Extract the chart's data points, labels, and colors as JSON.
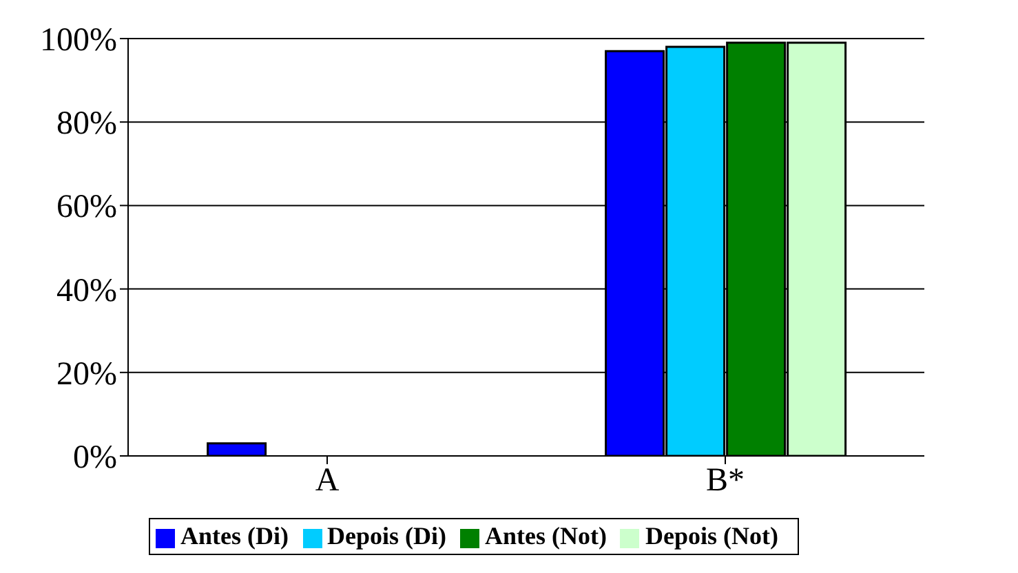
{
  "chart_data": {
    "type": "bar",
    "categories": [
      "A",
      "B*"
    ],
    "series": [
      {
        "name": "Antes (Di)",
        "color": "#0000ff",
        "values": [
          3,
          97
        ]
      },
      {
        "name": "Depois (Di)",
        "color": "#00ccff",
        "values": [
          0,
          98
        ]
      },
      {
        "name": "Antes (Not)",
        "color": "#008000",
        "values": [
          0,
          99
        ]
      },
      {
        "name": "Depois (Not)",
        "color": "#ccffcc",
        "values": [
          0,
          99
        ]
      }
    ],
    "ylim": [
      0,
      100
    ],
    "yticks": [
      {
        "value": 0,
        "label": "0%"
      },
      {
        "value": 20,
        "label": "20%"
      },
      {
        "value": 40,
        "label": "40%"
      },
      {
        "value": 60,
        "label": "60%"
      },
      {
        "value": 80,
        "label": "80%"
      },
      {
        "value": 100,
        "label": "100%"
      }
    ],
    "grid": "y",
    "legend": "bottom"
  }
}
